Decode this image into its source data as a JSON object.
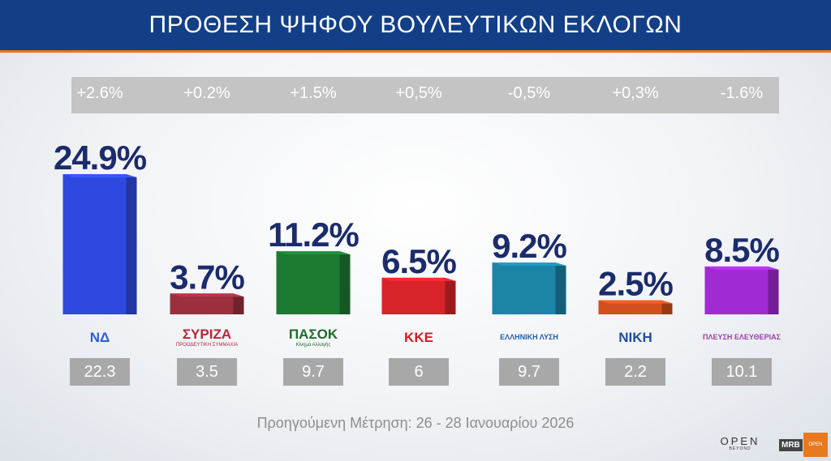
{
  "title": "ΠΡΟΘΕΣΗ ΨΗΦΟΥ ΒΟΥΛΕΥΤΙΚΩΝ ΕΚΛΟΓΩΝ",
  "footnote": "Προηγούμενη Μέτρηση: 26 - 28 Ιανουαρίου 2026",
  "brand": {
    "open": "OPEN",
    "open_sub": "BEYOND",
    "mrb": "MRB",
    "badge": "OPEN"
  },
  "chart_data": {
    "type": "bar",
    "categories": [
      "ΝΔ",
      "ΣΥΡΙΖΑ",
      "ΠΑΣΟΚ",
      "ΚΚΕ",
      "ΕΛΛΗΝΙΚΗ ΛΥΣΗ",
      "ΝΙΚΗ",
      "ΠΛΕΥΣΗ ΕΛΕΥΘΕΡΙΑΣ"
    ],
    "values": [
      24.9,
      3.7,
      11.2,
      6.5,
      9.2,
      2.5,
      8.5
    ],
    "value_labels": [
      "24.9%",
      "3.7%",
      "11.2%",
      "6.5%",
      "9.2%",
      "2.5%",
      "8.5%"
    ],
    "changes": [
      "+2.6%",
      "+0.2%",
      "+1.5%",
      "+0,5%",
      "-0,5%",
      "+0,3%",
      "-1.6%"
    ],
    "previous": [
      "22.3",
      "3.5",
      "9.7",
      "6",
      "9.7",
      "2.2",
      "10.1"
    ],
    "colors": [
      "#2f49e0",
      "#9c2f3e",
      "#1d7a32",
      "#d8232a",
      "#1b84a7",
      "#d2501e",
      "#a12ad2"
    ],
    "logos": [
      {
        "text": "ΝΔ",
        "sub": "",
        "color": "#2c61c8"
      },
      {
        "text": "ΣΥΡΙΖΑ",
        "sub": "ΠΡΟΟΔΕΥΤΙΚΗ ΣΥΜΜΑΧΙΑ",
        "color": "#b7253a"
      },
      {
        "text": "ΠΑΣΟΚ",
        "sub": "Κίνημα Αλλαγής",
        "color": "#1e6c2c"
      },
      {
        "text": "ΚΚΕ",
        "sub": "",
        "color": "#d31f26"
      },
      {
        "text": "ΕΛΛΗΝΙΚΗ ΛΥΣΗ",
        "sub": "",
        "color": "#1f5fa6"
      },
      {
        "text": "ΝΙΚΗ",
        "sub": "",
        "color": "#1d4fa0"
      },
      {
        "text": "ΠΛΕΥΣΗ ΕΛΕΥΘΕΡΙΑΣ",
        "sub": "",
        "color": "#9a3fa5"
      }
    ]
  }
}
